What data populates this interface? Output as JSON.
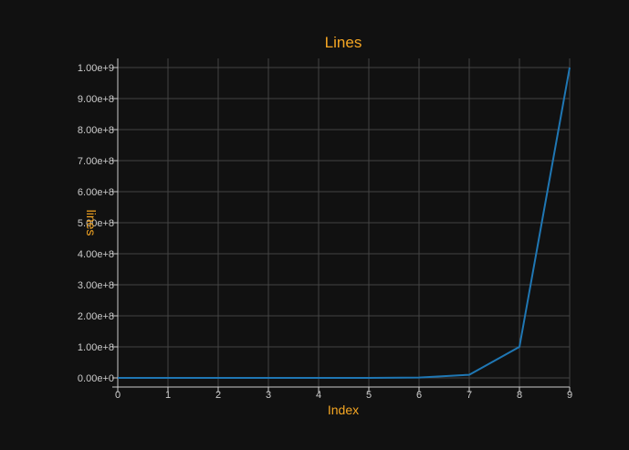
{
  "chart_data": {
    "type": "line",
    "title": "Lines",
    "xlabel": "Index",
    "ylabel": "lines",
    "x": [
      0,
      1,
      2,
      3,
      4,
      5,
      6,
      7,
      8,
      9
    ],
    "xticks": [
      "0",
      "1",
      "2",
      "3",
      "4",
      "5",
      "6",
      "7",
      "8",
      "9"
    ],
    "xlim": [
      0,
      9
    ],
    "yticks": [
      0,
      100000000,
      200000000,
      300000000,
      400000000,
      500000000,
      600000000,
      700000000,
      800000000,
      900000000,
      1000000000
    ],
    "ytick_labels": [
      "0.00e+0",
      "1.00e+8",
      "2.00e+8",
      "3.00e+8",
      "4.00e+8",
      "5.00e+8",
      "6.00e+8",
      "7.00e+8",
      "8.00e+8",
      "9.00e+8",
      "1.00e+9"
    ],
    "ylim": [
      0,
      1000000000
    ],
    "grid": true,
    "series": [
      {
        "values": [
          1,
          10,
          100,
          1000,
          10000,
          100000,
          1000000,
          10000000,
          100000000,
          1000000000
        ],
        "color": "#1f77b4"
      }
    ],
    "colors": {
      "background": "#111111",
      "title": "#f5a623",
      "axis_label": "#f5a623",
      "tick_label": "#cccccc",
      "grid": "#444444",
      "axis": "#cccccc"
    }
  }
}
